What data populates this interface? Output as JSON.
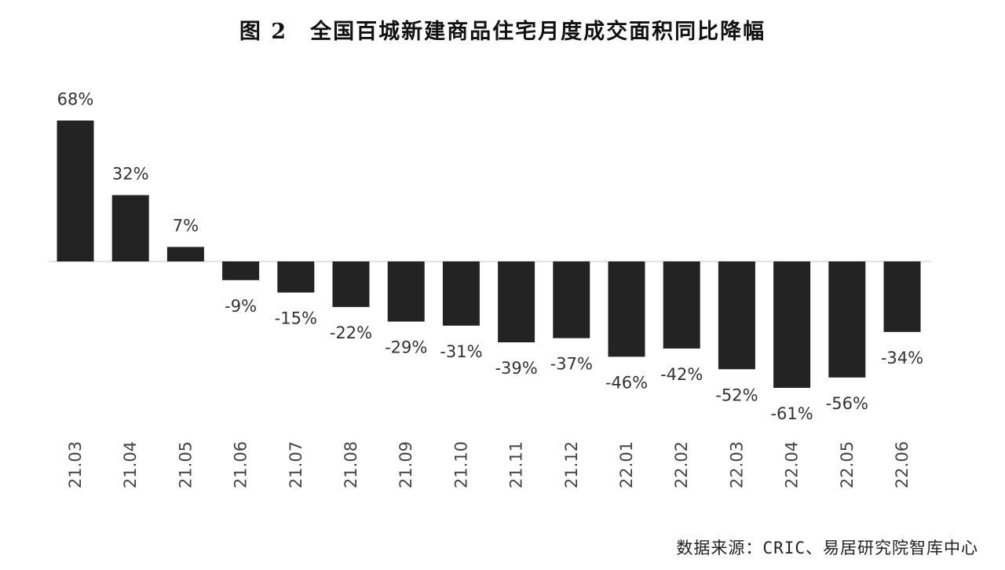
{
  "chart_data": {
    "type": "bar",
    "title": "图 2　全国百城新建商品住宅月度成交面积同比降幅",
    "categories": [
      "21.03",
      "21.04",
      "21.05",
      "21.06",
      "21.07",
      "21.08",
      "21.09",
      "21.10",
      "21.11",
      "21.12",
      "22.01",
      "22.02",
      "22.03",
      "22.04",
      "22.05",
      "22.06"
    ],
    "values": [
      68,
      32,
      7,
      -9,
      -15,
      -22,
      -29,
      -31,
      -39,
      -37,
      -46,
      -42,
      -52,
      -61,
      -56,
      -34
    ],
    "value_labels": [
      "68%",
      "32%",
      "7%",
      "-9%",
      "-15%",
      "-22%",
      "-29%",
      "-31%",
      "-39%",
      "-37%",
      "-46%",
      "-42%",
      "-52%",
      "-61%",
      "-56%",
      "-34%"
    ],
    "bar_color": "#232323",
    "xlabel": "",
    "ylabel": "",
    "grid": false,
    "legend": "none",
    "source": "数据来源：CRIC、易居研究院智库中心"
  }
}
